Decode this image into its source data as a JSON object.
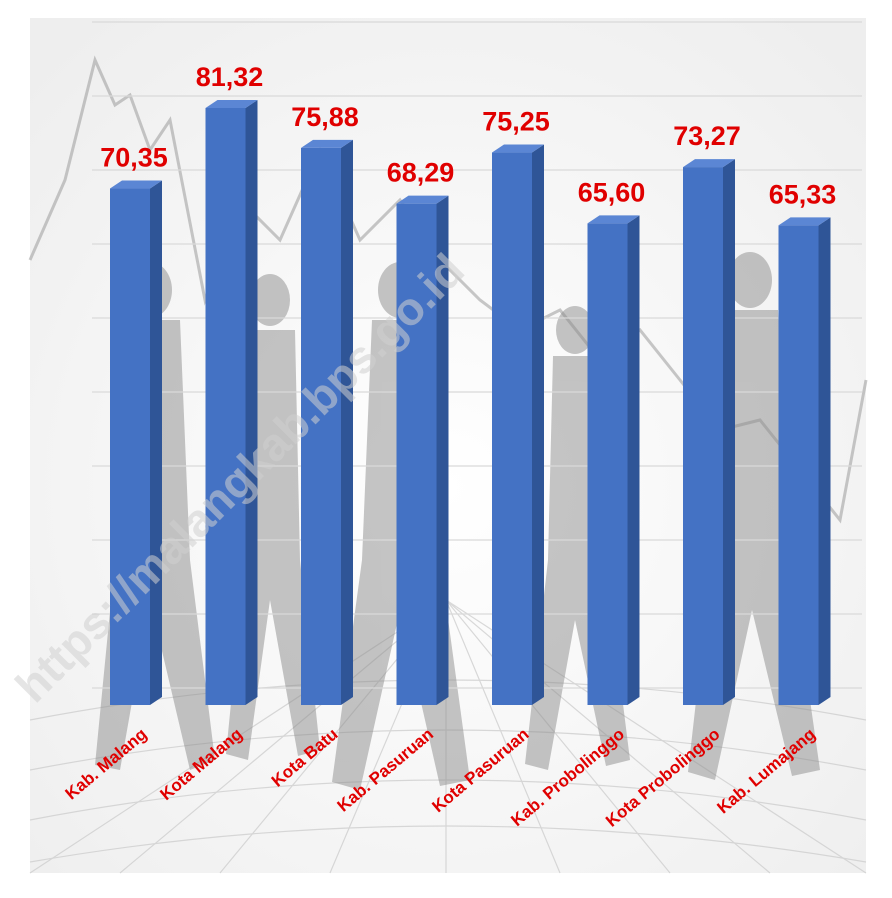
{
  "chart_data": {
    "type": "bar",
    "title": "",
    "xlabel": "",
    "ylabel": "",
    "categories": [
      "Kab. Malang",
      "Kota Malang",
      "Kota Batu",
      "Kab. Pasuruan",
      "Kota Pasuruan",
      "Kab. Probolinggo",
      "Kota Probolinggo",
      "Kab. Lumajang"
    ],
    "values": [
      70.35,
      81.32,
      75.88,
      68.29,
      75.25,
      65.6,
      73.27,
      65.33
    ],
    "value_labels": [
      "70,35",
      "81,32",
      "75,88",
      "68,29",
      "75,25",
      "65,60",
      "73,27",
      "65,33"
    ],
    "ylim": [
      0,
      81.32
    ],
    "style": "3d-column",
    "grid": true,
    "legend": "none",
    "colors": {
      "bar_front": "#4472C4",
      "bar_side": "#2F5597",
      "bar_top": "#5B86D4",
      "label": "#E00000",
      "grid": "#D9D9D9"
    }
  },
  "watermark": "https://malangkab.bps.go.id"
}
